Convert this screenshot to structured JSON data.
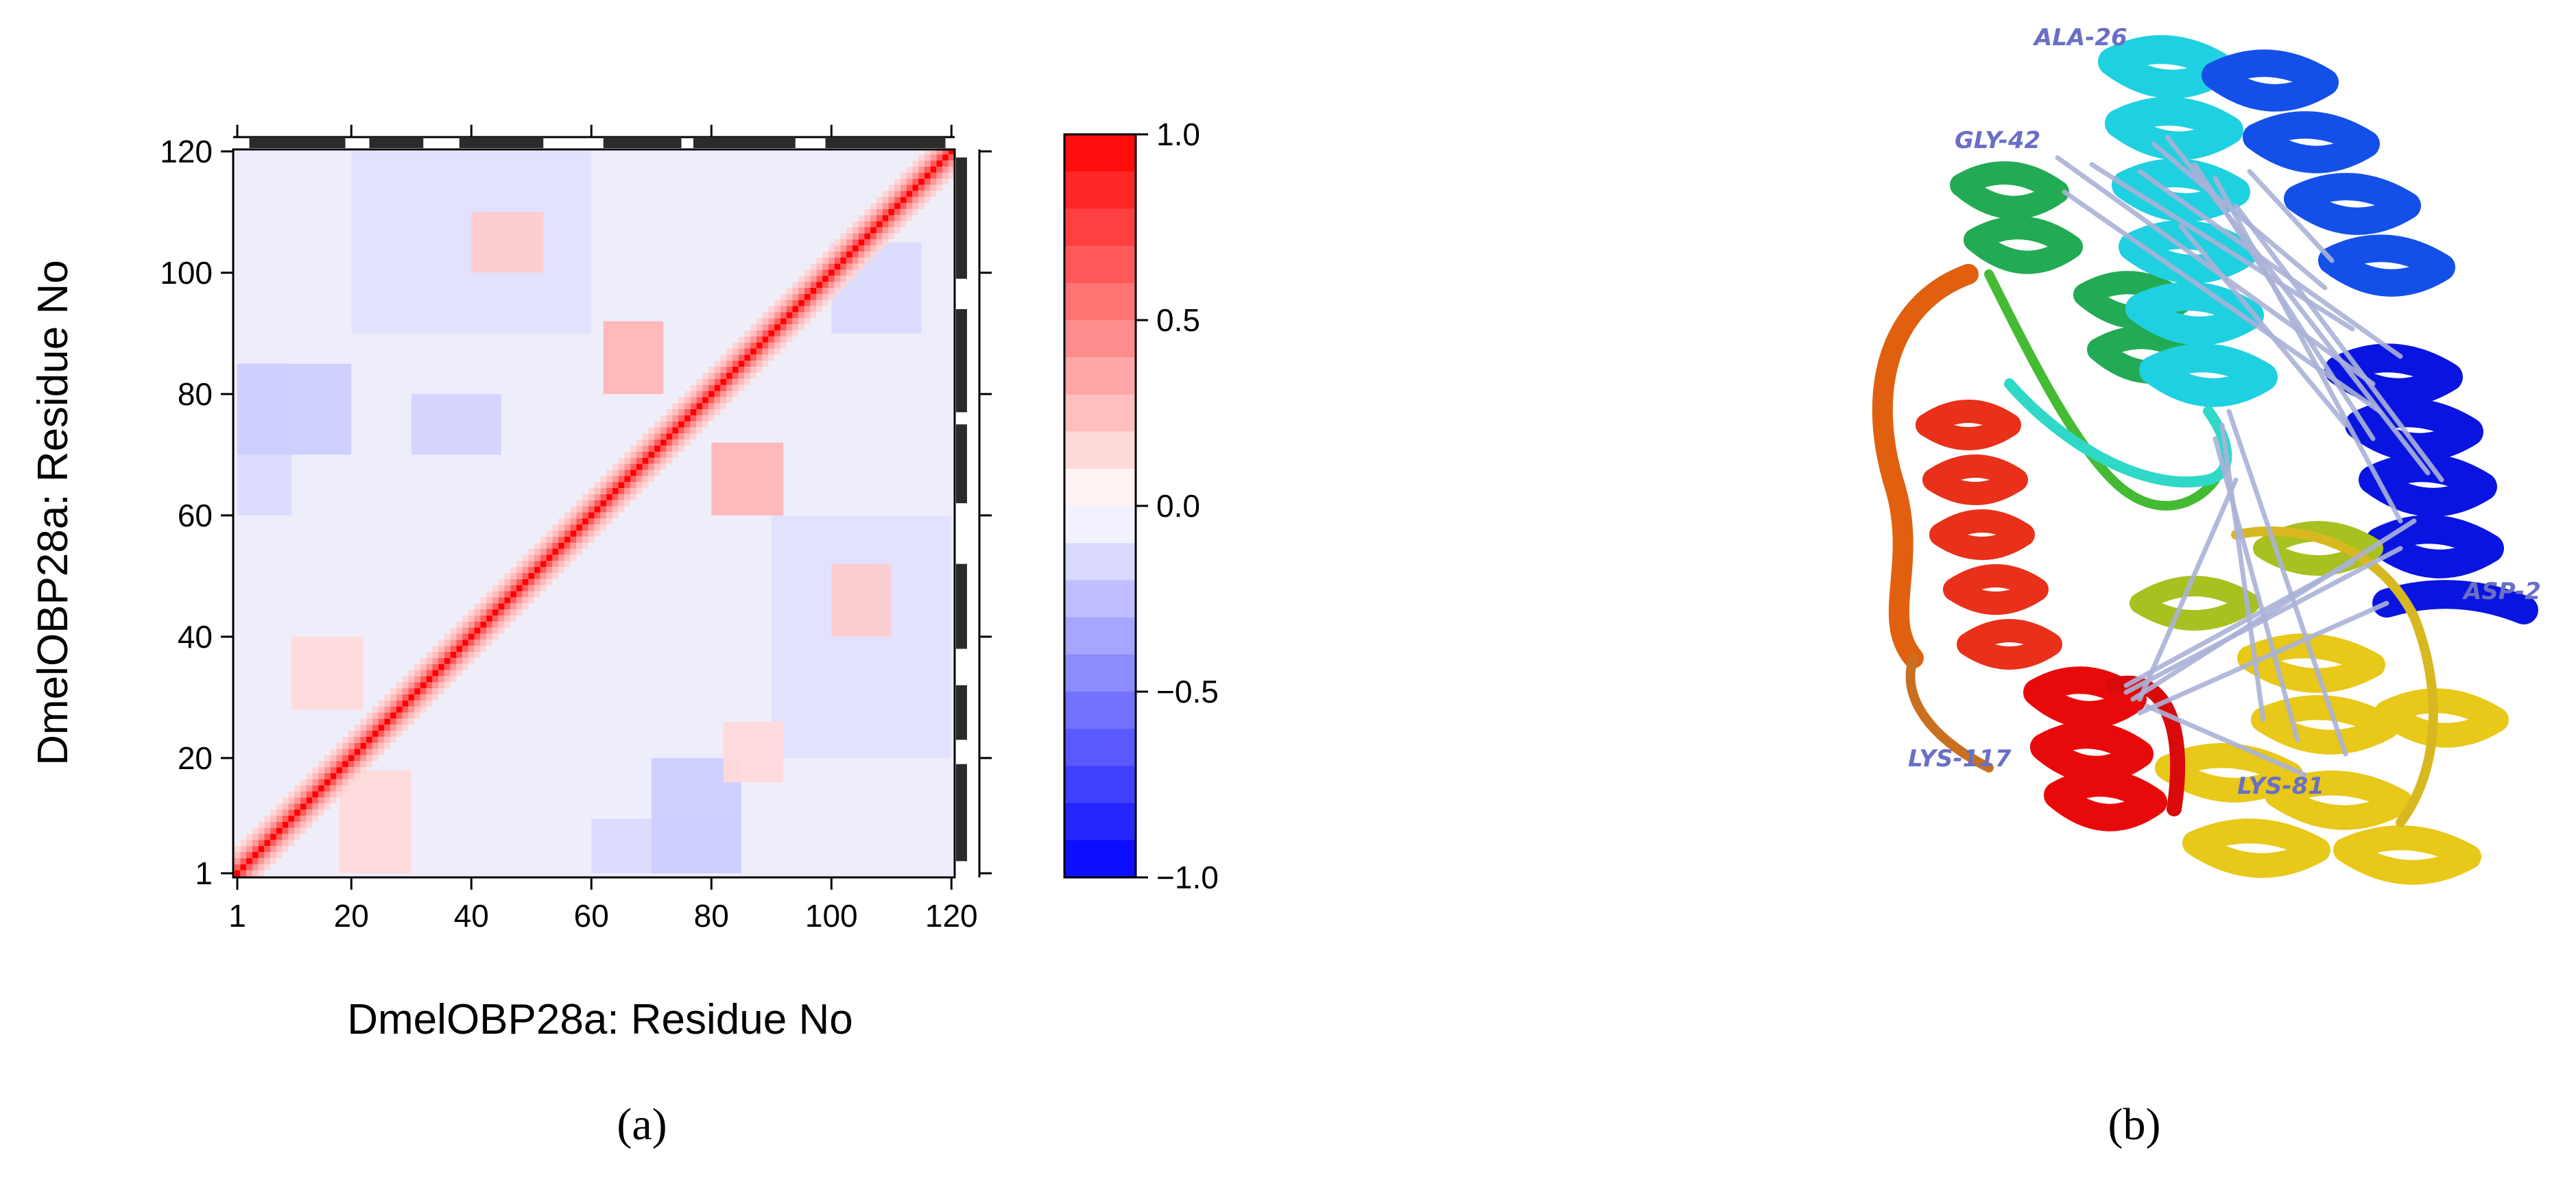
{
  "panels": {
    "a_label": "(a)",
    "b_label": "(b)"
  },
  "chart_data": {
    "type": "heatmap",
    "title": "",
    "xlabel": "DmelOBP28a: Residue No",
    "ylabel": "DmelOBP28a: Residue No",
    "xlim": [
      1,
      122
    ],
    "ylim": [
      1,
      122
    ],
    "x_ticks": [
      "1",
      "20",
      "40",
      "60",
      "80",
      "100",
      "120"
    ],
    "y_ticks": [
      "1",
      "20",
      "40",
      "60",
      "80",
      "100",
      "120"
    ],
    "colorbar": {
      "range": [
        -1.0,
        1.0
      ],
      "ticks": [
        "1.0",
        "0.5",
        "0.0",
        "−0.5",
        "−1.0"
      ],
      "low_color": "#0000ff",
      "high_color": "#ff0000"
    },
    "diagonal_value": 1.0,
    "correlated_blocks": [
      {
        "x": [
          18,
          30
        ],
        "y": [
          1,
          18
        ],
        "value": 0.15
      },
      {
        "x": [
          62,
          72
        ],
        "y": [
          80,
          92
        ],
        "value": 0.3
      },
      {
        "x": [
          80,
          92
        ],
        "y": [
          60,
          72
        ],
        "value": 0.3
      },
      {
        "x": [
          40,
          52
        ],
        "y": [
          100,
          110
        ],
        "value": 0.2
      },
      {
        "x": [
          100,
          110
        ],
        "y": [
          40,
          52
        ],
        "value": 0.2
      },
      {
        "x": [
          10,
          22
        ],
        "y": [
          28,
          40
        ],
        "value": 0.15
      },
      {
        "x": [
          82,
          92
        ],
        "y": [
          16,
          26
        ],
        "value": 0.15
      }
    ],
    "anticorrelated_blocks": [
      {
        "x": [
          1,
          10
        ],
        "y": [
          60,
          85
        ],
        "value": -0.15
      },
      {
        "x": [
          60,
          85
        ],
        "y": [
          1,
          10
        ],
        "value": -0.15
      },
      {
        "x": [
          70,
          85
        ],
        "y": [
          1,
          20
        ],
        "value": -0.2
      },
      {
        "x": [
          1,
          20
        ],
        "y": [
          70,
          85
        ],
        "value": -0.2
      },
      {
        "x": [
          20,
          60
        ],
        "y": [
          90,
          120
        ],
        "value": -0.12
      },
      {
        "x": [
          90,
          120
        ],
        "y": [
          20,
          60
        ],
        "value": -0.12
      },
      {
        "x": [
          30,
          45
        ],
        "y": [
          70,
          80
        ],
        "value": -0.18
      },
      {
        "x": [
          100,
          115
        ],
        "y": [
          90,
          105
        ],
        "value": -0.15
      }
    ],
    "secondary_structure_bars": [
      {
        "start": 3,
        "end": 19
      },
      {
        "start": 23,
        "end": 32
      },
      {
        "start": 38,
        "end": 52
      },
      {
        "start": 62,
        "end": 75
      },
      {
        "start": 77,
        "end": 94
      },
      {
        "start": 99,
        "end": 119
      }
    ]
  },
  "structure": {
    "residue_labels": [
      "ALA-26",
      "GLY-42",
      "ASP-2",
      "LYS-117",
      "LYS-81"
    ],
    "link_color": "#aab2d8"
  }
}
